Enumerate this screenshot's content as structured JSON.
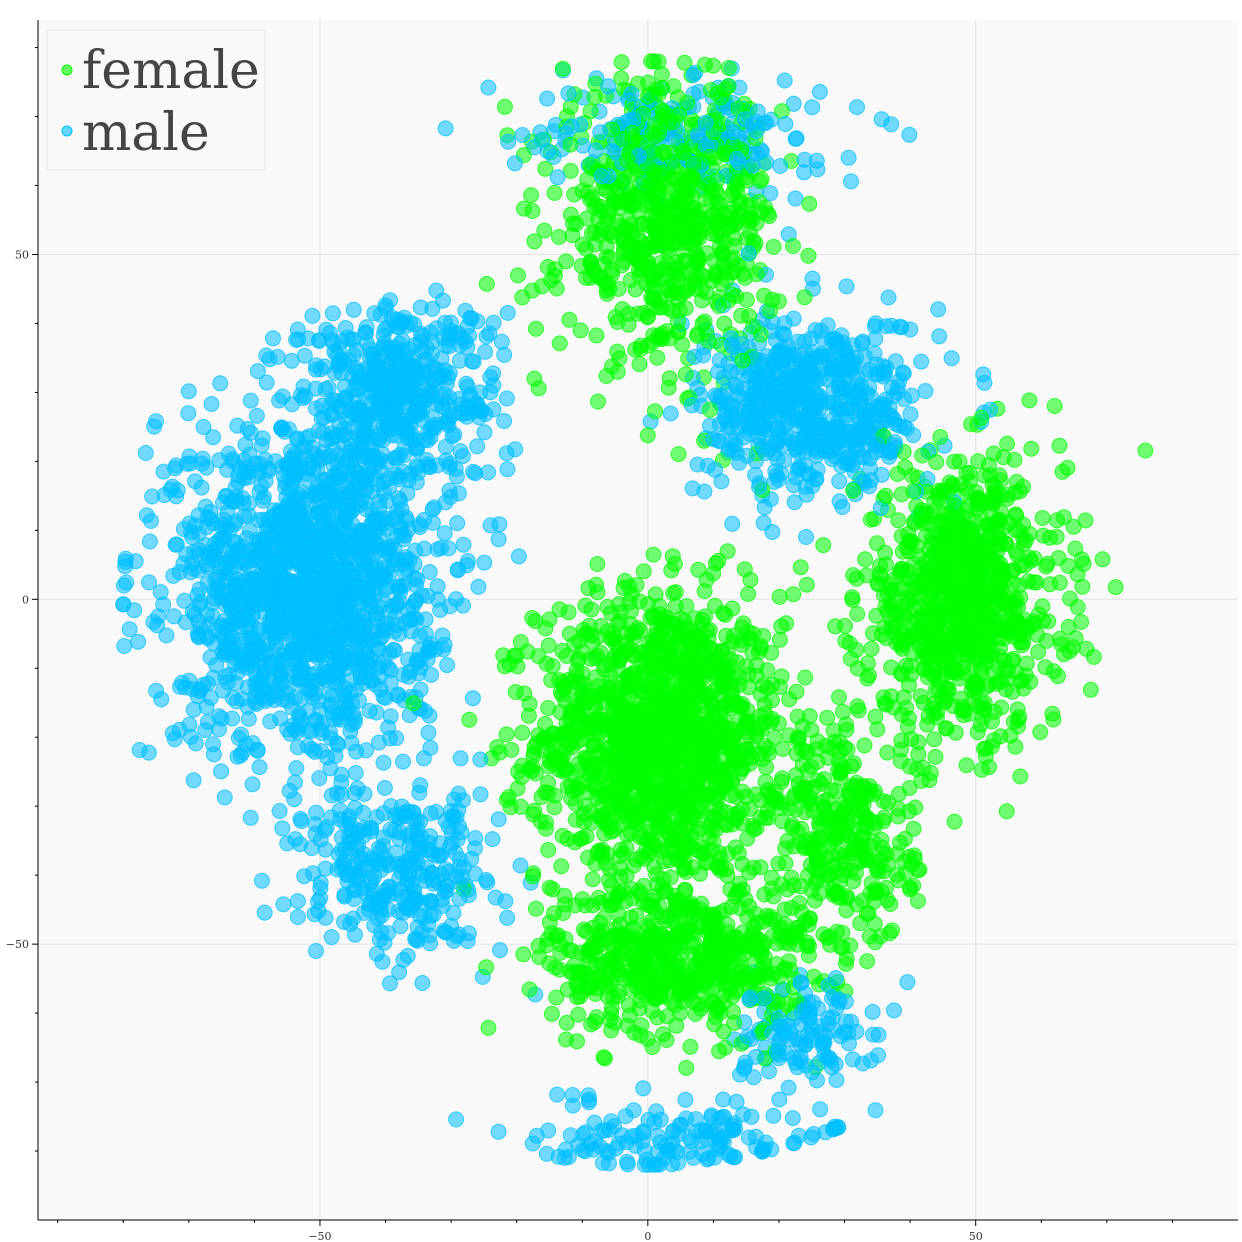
{
  "chart_data": {
    "type": "scatter",
    "title": "",
    "xlabel": "",
    "ylabel": "",
    "xlim": [
      -93,
      90
    ],
    "ylim": [
      -90,
      84
    ],
    "xticks": [
      -50,
      0,
      50
    ],
    "yticks": [
      50,
      0,
      -50
    ],
    "xtick_labels": [
      "−50",
      "0",
      "50"
    ],
    "ytick_labels": [
      "50",
      "0",
      "−50"
    ],
    "grid": true,
    "legend": {
      "position": "top-left"
    },
    "series": [
      {
        "name": "female",
        "color": "#00ff00",
        "clusters": [
          {
            "center": [
              2,
              -20
            ],
            "spread": [
              17,
              19
            ],
            "count": 1400
          },
          {
            "center": [
              5,
              -52
            ],
            "spread": [
              18,
              10
            ],
            "count": 600
          },
          {
            "center": [
              48,
              0
            ],
            "spread": [
              14,
              18
            ],
            "count": 850
          },
          {
            "center": [
              3,
              55
            ],
            "spread": [
              15,
              18
            ],
            "count": 700
          },
          {
            "center": [
              30,
              -35
            ],
            "spread": [
              10,
              14
            ],
            "count": 300
          }
        ]
      },
      {
        "name": "male",
        "color": "#00bfff",
        "clusters": [
          {
            "center": [
              -52,
              2
            ],
            "spread": [
              18,
              22
            ],
            "count": 1500
          },
          {
            "center": [
              -38,
              30
            ],
            "spread": [
              14,
              12
            ],
            "count": 450
          },
          {
            "center": [
              25,
              28
            ],
            "spread": [
              15,
              12
            ],
            "count": 600
          },
          {
            "center": [
              -38,
              -40
            ],
            "spread": [
              14,
              11
            ],
            "count": 300
          },
          {
            "center": [
              24,
              -63
            ],
            "spread": [
              10,
              7
            ],
            "count": 120
          },
          {
            "center": [
              5,
              68
            ],
            "spread": [
              20,
              8
            ],
            "count": 180
          },
          {
            "center": [
              5,
              -78
            ],
            "spread": [
              22,
              5
            ],
            "count": 150
          }
        ]
      }
    ]
  },
  "legend": {
    "female_label": "female",
    "male_label": "male"
  }
}
